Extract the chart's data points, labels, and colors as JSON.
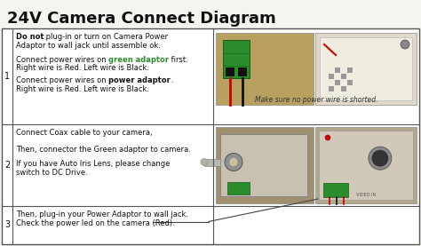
{
  "title": "24V Camera Connect Diagram",
  "title_fontsize": 13,
  "title_fontweight": "bold",
  "bg_color": "#f5f5f0",
  "border_color": "#555555",
  "table_bg": "#ffffff",
  "row1": {
    "num": "1",
    "line1_bold": "Do not",
    "line1_rest": " plug-in or turn on Camera Power",
    "line2": "Adaptor to wall jack until assemble ok.",
    "line3_pre": "Connect power wires on ",
    "line3_bold": "green adaptor",
    "line3_post": " first.",
    "line4": "Right wire is Red. Left wire is Black.",
    "line5_pre": "Connect power wires on ",
    "line5_bold": "power adaptor",
    "line5_post": ".",
    "line6": "Right wire is Red. Left wire is Black.",
    "caption": "Make sure no power wire is shorted."
  },
  "row2": {
    "num": "2",
    "line1": "Connect Coax cable to your camera,",
    "line2": "Then, connector the Green adaptor to camera.",
    "line3": "If you have Auto Iris Lens, please change",
    "line4": "switch to DC Drive."
  },
  "row3": {
    "num": "3",
    "line1": "Then, plug-in your Power Adaptor to wall jack.",
    "line2": "Check the power led on the camera (Red)."
  },
  "text_fontsize": 6.0,
  "num_fontsize": 7.0,
  "caption_fontsize": 5.5,
  "green_color": "#2d8a2d",
  "wire_red": "#cc0000",
  "wire_black": "#111111"
}
